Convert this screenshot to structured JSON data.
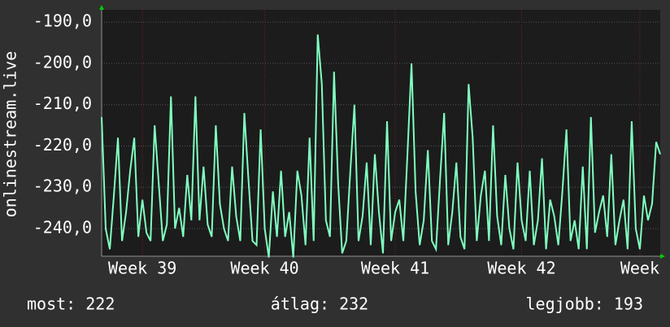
{
  "chart_data": {
    "type": "line",
    "ylabel": "onlinestream.live",
    "values": [
      -213,
      -240,
      -245,
      -232,
      -218,
      -243,
      -236,
      -226,
      -218,
      -242,
      -233,
      -241,
      -243,
      -215,
      -229,
      -243,
      -239,
      -208,
      -240,
      -235,
      -242,
      -227,
      -238,
      -208,
      -238,
      -225,
      -239,
      -242,
      -215,
      -234,
      -240,
      -243,
      -225,
      -237,
      -243,
      -212,
      -228,
      -243,
      -244,
      -216,
      -240,
      -247,
      -231,
      -242,
      -226,
      -242,
      -236,
      -247,
      -226,
      -232,
      -244,
      -218,
      -243,
      -193,
      -205,
      -238,
      -242,
      -202,
      -229,
      -246,
      -243,
      -226,
      -210,
      -243,
      -237,
      -224,
      -244,
      -222,
      -236,
      -246,
      -214,
      -243,
      -236,
      -233,
      -243,
      -222,
      -200,
      -231,
      -244,
      -238,
      -221,
      -243,
      -245,
      -228,
      -212,
      -244,
      -236,
      -224,
      -242,
      -245,
      -205,
      -218,
      -243,
      -232,
      -226,
      -243,
      -215,
      -237,
      -244,
      -227,
      -240,
      -245,
      -224,
      -238,
      -243,
      -226,
      -244,
      -238,
      -223,
      -245,
      -233,
      -237,
      -244,
      -231,
      -216,
      -243,
      -238,
      -245,
      -225,
      -245,
      -213,
      -241,
      -236,
      -232,
      -242,
      -222,
      -244,
      -238,
      -233,
      -245,
      -214,
      -240,
      -245,
      -232,
      -238,
      -234,
      -219,
      -222
    ],
    "color": "#80ffc0",
    "xlim": [
      0,
      137
    ],
    "xticks": [
      {
        "value": 10,
        "label": "Week 39"
      },
      {
        "value": 40,
        "label": "Week 40"
      },
      {
        "value": 72,
        "label": "Week 41"
      },
      {
        "value": 103,
        "label": "Week 42"
      },
      {
        "value": 132,
        "label": "Week"
      }
    ],
    "ylim": [
      -246.7,
      -187
    ],
    "yticks": [
      {
        "value": -190,
        "label": "-190,0"
      },
      {
        "value": -200,
        "label": "-200,0"
      },
      {
        "value": -210,
        "label": "-210,0"
      },
      {
        "value": -220,
        "label": "-220,0"
      },
      {
        "value": -230,
        "label": "-230,0"
      },
      {
        "value": -240,
        "label": "-240,0"
      }
    ],
    "grid": true,
    "footer": [
      "most: 222",
      "átlag: 232",
      "legjobb: 193"
    ]
  }
}
